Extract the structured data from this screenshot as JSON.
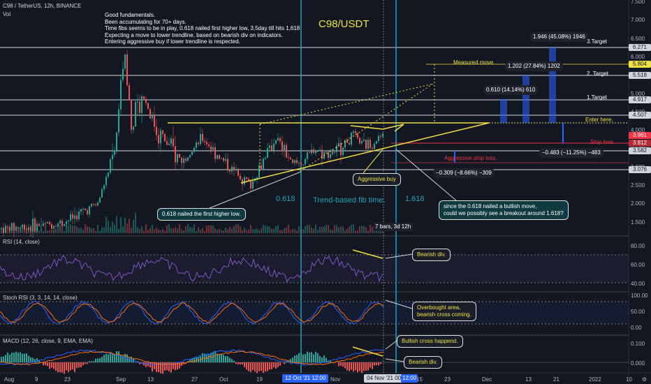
{
  "header": {
    "symbol": "C98 / TetherUS, 12h, BINANCE",
    "vol": "Vol"
  },
  "notes": [
    "Good fundamentals.",
    "Been accumulating for 70+ days.",
    "Time fibs seems to be in play, 0.618 nailed first higher low, 3,5day till hits 1,618",
    "Expecting a move to lower trendline, based on bearish div on indicators.",
    "Entering aggressive buy if lower trendline is respected."
  ],
  "chart_heading": "C98/USDT",
  "levels": {
    "target3": "3.Target",
    "target2": "2. Target",
    "target1": "1.Target",
    "enter": "Enter here.",
    "stop": "Stop loss",
    "aggressive_stop": "Aggressive stop loss.",
    "measured_move": "Measured move"
  },
  "measures": {
    "t3": "1.946 (45.08%) 1946",
    "t2": "1.202 (27.84%) 1202",
    "t1": "0.610 (14.14%) 610",
    "stop": "−0.483 (−11.25%) −483",
    "aggressive_stop": "−0.309 (−8.66%) −309"
  },
  "fib": {
    "left": "0.618",
    "title": "Trend-based fib time.",
    "right": "1.618"
  },
  "callouts": {
    "aggressive_buy": "Aggressive buy",
    "higher_low": "0.618 nailed the first higher low.",
    "breakout_q": [
      "since the 0.618 nailed a bullish move,",
      "could we possibly see a breakout around 1.618?"
    ],
    "bars": "7 bars, 3d 12h",
    "rsi_bearish": "Bearish div.",
    "overbought": [
      "Overbought area,",
      "bearish cross coming."
    ],
    "bullish_cross": "Bullish cross happend.",
    "macd_bearish": "Bearish div."
  },
  "indicators": {
    "rsi": "RSI (14, close)",
    "stoch": "Stoch RSI (3, 3, 14, 14, close)",
    "macd": "MACD (12, 26, close, 9, EMA, EMA)"
  },
  "price_axis": [
    "7.500",
    "7.000",
    "6.500",
    "6.000",
    "5.500",
    "5.000",
    "4.500",
    "4.000",
    "3.500",
    "3.000",
    "2.500",
    "2.000",
    "1.500"
  ],
  "price_tags": [
    "6.271",
    "5.804",
    "5.518",
    "4.917",
    "4.507",
    "3.961",
    "3.812",
    "3.582",
    "3.076"
  ],
  "rsi_axis": [
    "80.00",
    "60.00",
    "40.00"
  ],
  "stoch_axis": [
    "100.00",
    "50.00",
    "0.00"
  ],
  "macd_axis": [
    "0.100",
    "0.000"
  ],
  "time_axis": [
    "Aug",
    "9",
    "23",
    "Sep",
    "13",
    "27",
    "Oct",
    "19",
    "Nov",
    "15",
    "23",
    "Dec",
    "13",
    "21",
    "2022",
    "10"
  ],
  "time_markers": [
    "12 Oct '21  12:00",
    "04 Nov '21  00:00",
    "12:00"
  ],
  "gear_icon": "⚙",
  "colors": {
    "up": "#26a69a",
    "down": "#ef5350",
    "accent": "#f0e040",
    "fib": "#22a3b8"
  }
}
